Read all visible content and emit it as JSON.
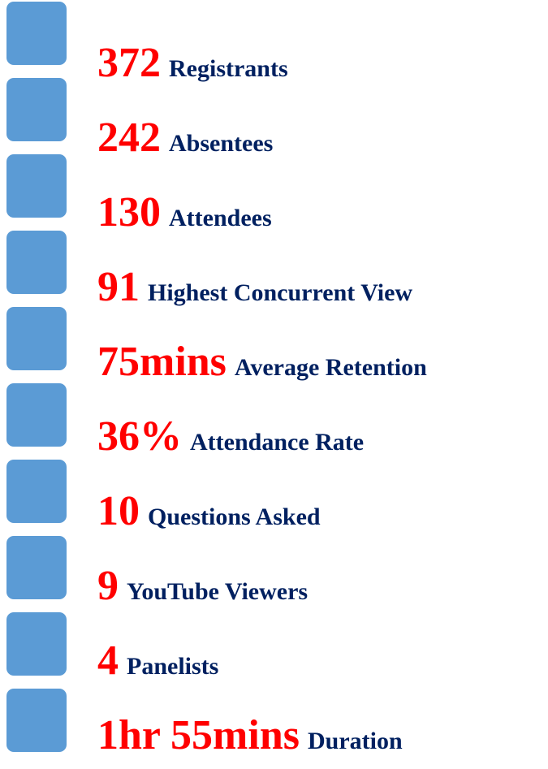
{
  "items": [
    {
      "number": "372",
      "label": "Registrants"
    },
    {
      "number": "242",
      "label": "Absentees"
    },
    {
      "number": "130",
      "label": "Attendees"
    },
    {
      "number": "91",
      "label": "Highest Concurrent View"
    },
    {
      "number": "75mins",
      "label": "Average Retention"
    },
    {
      "number": "36%",
      "label": "Attendance Rate"
    },
    {
      "number": "10",
      "label": "Questions Asked"
    },
    {
      "number": "9",
      "label": "YouTube Viewers"
    },
    {
      "number": "4",
      "label": "Panelists"
    },
    {
      "number": "1hr 55mins",
      "label": "Duration"
    }
  ]
}
